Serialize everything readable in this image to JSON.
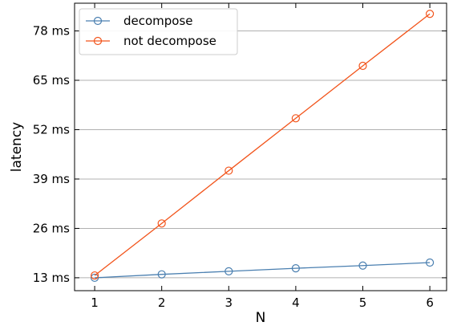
{
  "chart_data": {
    "type": "line",
    "xlabel": "N",
    "ylabel": "latency",
    "x": [
      1,
      2,
      3,
      4,
      5,
      6
    ],
    "xticks": [
      1,
      2,
      3,
      4,
      5,
      6
    ],
    "xtick_labels": [
      "1",
      "2",
      "3",
      "4",
      "5",
      "6"
    ],
    "xlim": [
      0.7,
      6.25
    ],
    "ylim": [
      9.6,
      85.3
    ],
    "yticks": [
      13,
      26,
      39,
      52,
      65,
      78
    ],
    "ytick_labels": [
      "13 ms",
      "26 ms",
      "39 ms",
      "52 ms",
      "65 ms",
      "78 ms"
    ],
    "grid": "horizontal",
    "legend_position": "top-left",
    "series": [
      {
        "name": "decompose",
        "color": "#4a7fb0",
        "values": [
          13.0,
          13.9,
          14.7,
          15.5,
          16.2,
          17.0
        ]
      },
      {
        "name": "not decompose",
        "color": "#f2541b",
        "values": [
          13.6,
          27.3,
          41.2,
          55.0,
          68.8,
          82.5
        ]
      }
    ]
  }
}
